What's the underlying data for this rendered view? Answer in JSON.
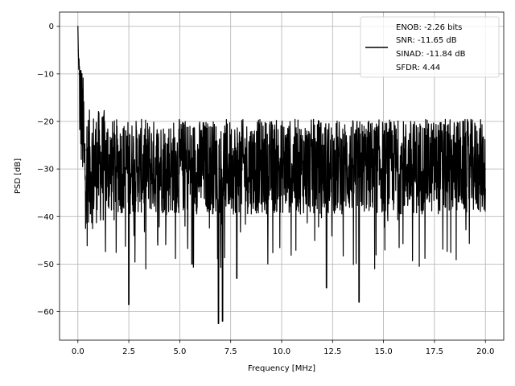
{
  "chart_data": {
    "type": "line",
    "title": "",
    "xlabel": "Frequency [MHz]",
    "ylabel": "PSD [dB]",
    "xlim": [
      -0.9,
      20.9
    ],
    "ylim": [
      -66,
      3
    ],
    "grid": true,
    "x_ticks": [
      0.0,
      2.5,
      5.0,
      7.5,
      10.0,
      12.5,
      15.0,
      17.5,
      20.0
    ],
    "x_tick_labels": [
      "0.0",
      "2.5",
      "5.0",
      "7.5",
      "10.0",
      "12.5",
      "15.0",
      "17.5",
      "20.0"
    ],
    "y_ticks": [
      0,
      -10,
      -20,
      -30,
      -40,
      -50,
      -60
    ],
    "y_tick_labels": [
      "0",
      "−10",
      "−20",
      "−30",
      "−40",
      "−50",
      "−60"
    ],
    "legend_position": "top-right",
    "legend_lines": [
      "ENOB: -2.26 bits",
      "SNR: -11.65 dB",
      "SINAD: -11.84 dB",
      "SFDR: 4.44"
    ],
    "series": [
      {
        "color": "#000000",
        "x": [
          0.0,
          0.02,
          0.05,
          0.1,
          0.15,
          0.2,
          0.3,
          0.4,
          0.5,
          0.6,
          0.75,
          1.0,
          1.25,
          1.5,
          2.0,
          2.4,
          2.5,
          3.0,
          3.5,
          4.0,
          4.5,
          5.0,
          5.5,
          5.6,
          6.0,
          6.5,
          6.9,
          7.0,
          7.1,
          7.5,
          7.8,
          8.0,
          8.5,
          9.0,
          10.0,
          11.0,
          11.5,
          12.0,
          12.2,
          13.0,
          13.8,
          14.0,
          15.0,
          15.5,
          16.0,
          17.0,
          18.0,
          19.0,
          19.5,
          20.0
        ],
        "y": [
          0.0,
          -5.0,
          -10.0,
          -15.0,
          -18.0,
          -20.0,
          -24.0,
          -26.0,
          -27.0,
          -28.0,
          -28.5,
          -29.0,
          -29.5,
          -29.5,
          -29.5,
          -29.5,
          -58.5,
          -30.0,
          -29.5,
          -29.5,
          -29.5,
          -29.5,
          -29.5,
          -50.0,
          -30.0,
          -29.5,
          -62.5,
          -30.0,
          -62.0,
          -29.5,
          -53.0,
          -30.0,
          -29.5,
          -29.5,
          -30.0,
          -30.0,
          -30.0,
          -30.0,
          -55.0,
          -29.5,
          -58.0,
          -29.5,
          -29.5,
          -30.0,
          -30.0,
          -30.0,
          -29.5,
          -29.5,
          -30.0,
          -30.0
        ]
      }
    ]
  }
}
